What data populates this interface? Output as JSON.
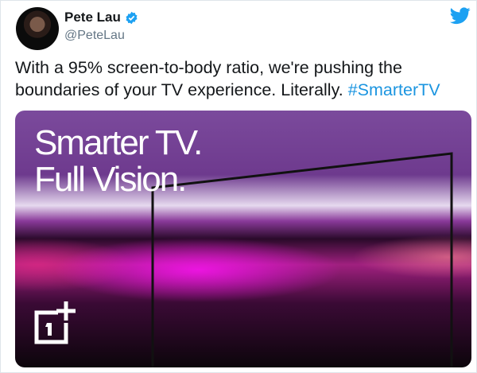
{
  "tweet": {
    "author_name": "Pete Lau",
    "handle": "@PeteLau",
    "verified": true,
    "text_plain": "With a 95% screen-to-body ratio, we're pushing the boundaries of your TV experience. Literally. ",
    "hashtag": "#SmarterTV",
    "brand_color": "#1da1f2"
  },
  "media": {
    "headline_line1": "Smarter TV.",
    "headline_line2": "Full Vision.",
    "logo": "OnePlus"
  },
  "icons": {
    "bird": "twitter-bird-icon",
    "verified": "verified-badge-icon"
  }
}
